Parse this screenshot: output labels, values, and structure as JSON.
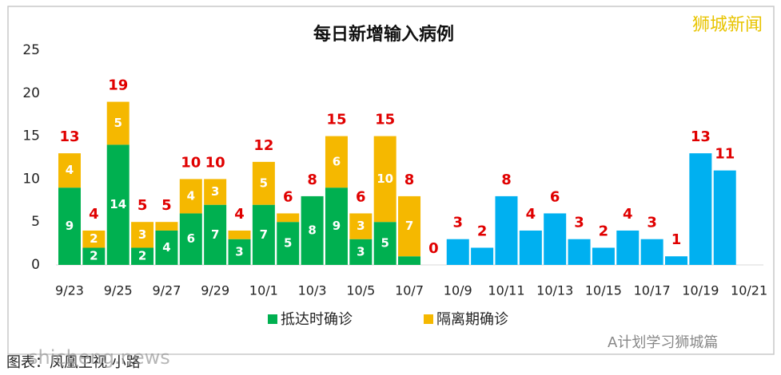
{
  "chart_data": {
    "type": "stacked-bar",
    "title": "每日新增输入病例",
    "categories": [
      "9/23",
      null,
      "9/25",
      null,
      "9/27",
      null,
      "9/29",
      null,
      "10/1",
      null,
      "10/3",
      null,
      "10/5",
      null,
      "10/7",
      null,
      "10/9",
      null,
      "10/11",
      null,
      "10/13",
      null,
      "10/15",
      null,
      "10/17",
      null,
      "10/19",
      null,
      "10/21"
    ],
    "series": [
      {
        "name": "抵达时确诊",
        "color": "#00b050",
        "values": [
          9,
          2,
          14,
          2,
          4,
          6,
          7,
          3,
          7,
          5,
          8,
          9,
          3,
          5,
          1,
          0,
          null,
          null,
          null,
          null,
          null,
          null,
          null,
          null,
          null,
          null,
          null,
          null,
          null
        ]
      },
      {
        "name": "隔离期确诊",
        "color": "#f5b800",
        "values": [
          4,
          2,
          5,
          3,
          1,
          4,
          3,
          1,
          5,
          1,
          0,
          6,
          3,
          10,
          7,
          0,
          null,
          null,
          null,
          null,
          null,
          null,
          null,
          null,
          null,
          null,
          null,
          null,
          null
        ]
      },
      {
        "color": "#00b0f0",
        "values": [
          null,
          null,
          null,
          null,
          null,
          null,
          null,
          null,
          null,
          null,
          null,
          null,
          null,
          null,
          null,
          null,
          3,
          2,
          8,
          4,
          6,
          3,
          2,
          4,
          3,
          1,
          13,
          11,
          null
        ]
      }
    ],
    "totals": [
      13,
      4,
      19,
      5,
      5,
      10,
      10,
      4,
      12,
      6,
      8,
      15,
      6,
      15,
      8,
      0,
      3,
      2,
      8,
      4,
      6,
      3,
      2,
      4,
      3,
      1,
      13,
      11,
      null
    ],
    "ylim": [
      0,
      25
    ],
    "yticks": [
      0,
      5,
      10,
      15,
      20,
      25
    ],
    "watermark": "狮城新闻",
    "footer": "图表：凤凰卫视 小路",
    "overlay": "shicheng.news",
    "account": "A计划学习狮城篇"
  }
}
